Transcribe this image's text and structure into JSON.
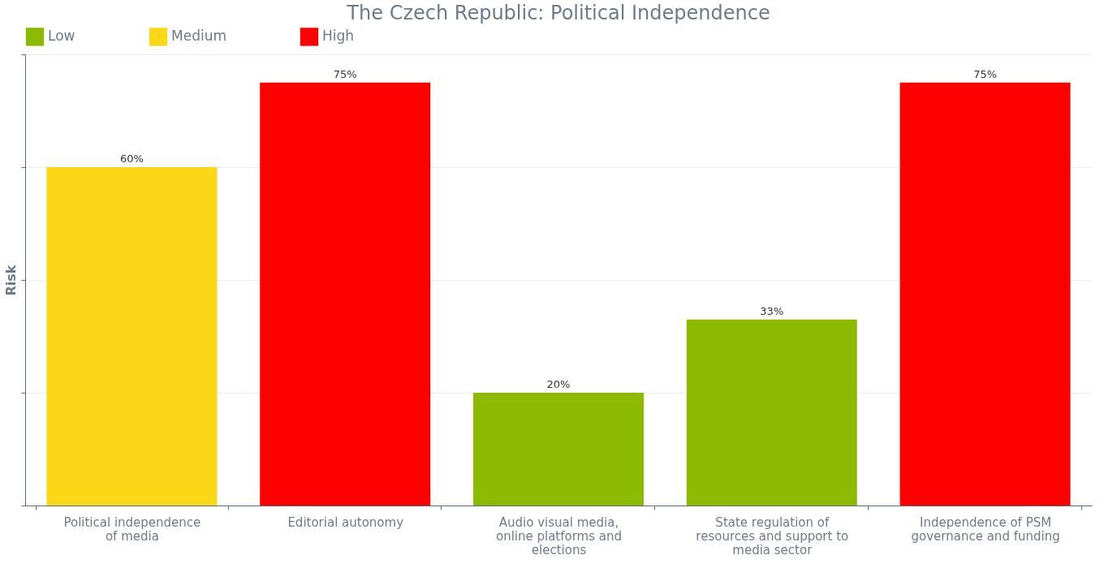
{
  "chart_data": {
    "type": "bar",
    "title": "The Czech Republic: Political Independence",
    "ylabel": "Risk",
    "categories": [
      "Political independence of media",
      "Editorial autonomy",
      "Audio visual media, online platforms and elections",
      "State regulation of resources and support to media sector",
      "Independence of PSM governance and funding"
    ],
    "series": [
      {
        "name": "Low",
        "color": "#8cba00",
        "values": [
          null,
          null,
          20,
          33,
          null
        ],
        "value_labels": [
          null,
          null,
          "20%",
          "33%",
          null
        ]
      },
      {
        "name": "Medium",
        "color": "#fad817",
        "values": [
          60,
          null,
          null,
          null,
          null
        ],
        "value_labels": [
          "60%",
          null,
          null,
          null,
          null
        ]
      },
      {
        "name": "High",
        "color": "#ff0000",
        "values": [
          null,
          75,
          null,
          null,
          75
        ],
        "value_labels": [
          null,
          "75%",
          null,
          null,
          "75%"
        ]
      }
    ],
    "tick_labels": "x",
    "grid": "y",
    "legend": "top left"
  }
}
